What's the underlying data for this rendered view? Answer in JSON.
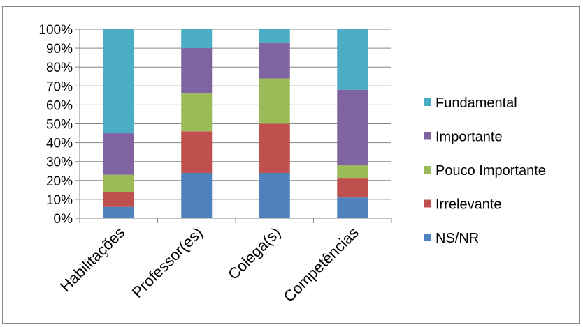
{
  "chart_data": {
    "type": "bar",
    "stacked": "percent",
    "categories": [
      "Habilitações",
      "Professor(es)",
      "Colega(s)",
      "Competências"
    ],
    "series": [
      {
        "name": "NS/NR",
        "color": "#4f81bd",
        "values": [
          6,
          24,
          24,
          11
        ]
      },
      {
        "name": "Irrelevante",
        "color": "#c0504d",
        "values": [
          8,
          22,
          26,
          10
        ]
      },
      {
        "name": "Pouco Importante",
        "color": "#9bbb59",
        "values": [
          9,
          20,
          24,
          7
        ]
      },
      {
        "name": "Importante",
        "color": "#8064a2",
        "values": [
          22,
          24,
          19,
          40
        ]
      },
      {
        "name": "Fundamental",
        "color": "#4bacc6",
        "values": [
          55,
          10,
          7,
          32
        ]
      }
    ],
    "y_ticks": [
      "0%",
      "10%",
      "20%",
      "30%",
      "40%",
      "50%",
      "60%",
      "70%",
      "80%",
      "90%",
      "100%"
    ],
    "ylim": [
      0,
      100
    ],
    "grid": true,
    "legend": "right"
  }
}
